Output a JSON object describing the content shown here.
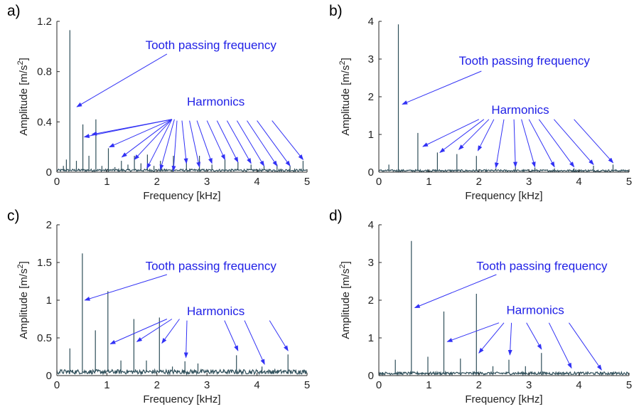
{
  "colors": {
    "spectrum": "#2f4f5a",
    "annotation": "#1f1fe6",
    "axis": "#262626"
  },
  "chart_data": [
    {
      "panel": "a)",
      "type": "line",
      "xlabel": "Frequency [kHz]",
      "ylabel": "Amplitude [m/s2]",
      "xlim": [
        0,
        5
      ],
      "ylim": [
        0,
        1.2
      ],
      "xticks": [
        0,
        1,
        2,
        3,
        4,
        5
      ],
      "yticks": [
        0,
        0.4,
        0.8,
        1.2
      ],
      "xtick_labels": [
        "0",
        "1",
        "2",
        "3",
        "4",
        "5"
      ],
      "ytick_labels": [
        "0",
        "0.4",
        "0.8",
        "1.2"
      ],
      "noise_floor": 0.015,
      "peaks": [
        {
          "x": 0.13,
          "y": 0.05
        },
        {
          "x": 0.19,
          "y": 0.1
        },
        {
          "x": 0.26,
          "y": 1.13
        },
        {
          "x": 0.39,
          "y": 0.09
        },
        {
          "x": 0.52,
          "y": 0.38
        },
        {
          "x": 0.64,
          "y": 0.13
        },
        {
          "x": 0.78,
          "y": 0.42
        },
        {
          "x": 0.9,
          "y": 0.05
        },
        {
          "x": 1.03,
          "y": 0.19
        },
        {
          "x": 1.16,
          "y": 0.04
        },
        {
          "x": 1.29,
          "y": 0.09
        },
        {
          "x": 1.42,
          "y": 0.06
        },
        {
          "x": 1.55,
          "y": 0.13
        },
        {
          "x": 1.68,
          "y": 0.07
        },
        {
          "x": 1.81,
          "y": 0.14
        },
        {
          "x": 1.94,
          "y": 0.05
        },
        {
          "x": 2.07,
          "y": 0.09
        },
        {
          "x": 2.33,
          "y": 0.13
        },
        {
          "x": 2.59,
          "y": 0.09
        },
        {
          "x": 2.85,
          "y": 0.13
        },
        {
          "x": 3.1,
          "y": 0.06
        },
        {
          "x": 3.36,
          "y": 0.1
        },
        {
          "x": 3.62,
          "y": 0.08
        },
        {
          "x": 3.88,
          "y": 0.06
        },
        {
          "x": 4.14,
          "y": 0.05
        },
        {
          "x": 4.4,
          "y": 0.06
        },
        {
          "x": 4.66,
          "y": 0.05
        },
        {
          "x": 4.92,
          "y": 0.09
        }
      ],
      "annotations": [
        {
          "text": "Tooth passing frequency",
          "x": 1.77,
          "y": 0.98,
          "arrows": [
            {
              "x1": 2.2,
              "y1": 0.94,
              "x2": 0.4,
              "y2": 0.52
            }
          ]
        },
        {
          "text": "Harmonics",
          "x": 2.6,
          "y": 0.53,
          "arrows": [
            {
              "x1": 2.3,
              "y1": 0.42,
              "x2": 0.55,
              "y2": 0.28
            },
            {
              "x1": 2.3,
              "y1": 0.42,
              "x2": 0.7,
              "y2": 0.3
            },
            {
              "x1": 2.3,
              "y1": 0.42,
              "x2": 1.05,
              "y2": 0.2
            },
            {
              "x1": 2.3,
              "y1": 0.42,
              "x2": 1.3,
              "y2": 0.12
            },
            {
              "x1": 2.3,
              "y1": 0.42,
              "x2": 1.55,
              "y2": 0.1
            },
            {
              "x1": 2.3,
              "y1": 0.42,
              "x2": 1.8,
              "y2": 0.03
            },
            {
              "x1": 2.35,
              "y1": 0.42,
              "x2": 2.07,
              "y2": 0.02
            },
            {
              "x1": 2.4,
              "y1": 0.41,
              "x2": 2.33,
              "y2": 0.01
            },
            {
              "x1": 2.5,
              "y1": 0.41,
              "x2": 2.59,
              "y2": 0.07
            },
            {
              "x1": 2.65,
              "y1": 0.41,
              "x2": 2.85,
              "y2": 0.04
            },
            {
              "x1": 2.8,
              "y1": 0.41,
              "x2": 3.1,
              "y2": 0.07
            },
            {
              "x1": 3.0,
              "y1": 0.41,
              "x2": 3.36,
              "y2": 0.1
            },
            {
              "x1": 3.2,
              "y1": 0.41,
              "x2": 3.62,
              "y2": 0.08
            },
            {
              "x1": 3.4,
              "y1": 0.41,
              "x2": 3.88,
              "y2": 0.07
            },
            {
              "x1": 3.6,
              "y1": 0.41,
              "x2": 4.14,
              "y2": 0.05
            },
            {
              "x1": 3.8,
              "y1": 0.41,
              "x2": 4.4,
              "y2": 0.05
            },
            {
              "x1": 4.0,
              "y1": 0.41,
              "x2": 4.66,
              "y2": 0.05
            },
            {
              "x1": 4.3,
              "y1": 0.41,
              "x2": 4.92,
              "y2": 0.1
            }
          ]
        }
      ]
    },
    {
      "panel": "b)",
      "type": "line",
      "xlabel": "Frequency [kHz]",
      "ylabel": "Amplitude [m/s2]",
      "xlim": [
        0,
        5
      ],
      "ylim": [
        0,
        4
      ],
      "xticks": [
        0,
        1,
        2,
        3,
        4,
        5
      ],
      "yticks": [
        0,
        1,
        2,
        3,
        4
      ],
      "xtick_labels": [
        "0",
        "1",
        "2",
        "3",
        "4",
        "5"
      ],
      "ytick_labels": [
        "0",
        "1",
        "2",
        "3",
        "4"
      ],
      "noise_floor": 0.04,
      "peaks": [
        {
          "x": 0.2,
          "y": 0.2
        },
        {
          "x": 0.39,
          "y": 3.92
        },
        {
          "x": 0.78,
          "y": 1.04
        },
        {
          "x": 1.17,
          "y": 0.52
        },
        {
          "x": 1.56,
          "y": 0.48
        },
        {
          "x": 1.95,
          "y": 0.43
        },
        {
          "x": 2.34,
          "y": 0.1
        },
        {
          "x": 2.73,
          "y": 0.14
        },
        {
          "x": 3.12,
          "y": 0.12
        },
        {
          "x": 3.51,
          "y": 0.1
        },
        {
          "x": 3.9,
          "y": 0.1
        },
        {
          "x": 4.29,
          "y": 0.17
        },
        {
          "x": 4.68,
          "y": 0.2
        }
      ],
      "annotations": [
        {
          "text": "Tooth passing frequency",
          "x": 1.6,
          "y": 2.85,
          "arrows": [
            {
              "x1": 2.05,
              "y1": 2.68,
              "x2": 0.47,
              "y2": 1.8
            }
          ]
        },
        {
          "text": "Harmonics",
          "x": 2.25,
          "y": 1.55,
          "arrows": [
            {
              "x1": 2.0,
              "y1": 1.4,
              "x2": 0.88,
              "y2": 0.68
            },
            {
              "x1": 2.1,
              "y1": 1.4,
              "x2": 1.22,
              "y2": 0.52
            },
            {
              "x1": 2.2,
              "y1": 1.4,
              "x2": 1.6,
              "y2": 0.6
            },
            {
              "x1": 2.3,
              "y1": 1.4,
              "x2": 1.98,
              "y2": 0.57
            },
            {
              "x1": 2.5,
              "y1": 1.4,
              "x2": 2.34,
              "y2": 0.12
            },
            {
              "x1": 2.7,
              "y1": 1.4,
              "x2": 2.73,
              "y2": 0.14
            },
            {
              "x1": 2.85,
              "y1": 1.4,
              "x2": 3.12,
              "y2": 0.14
            },
            {
              "x1": 3.0,
              "y1": 1.4,
              "x2": 3.51,
              "y2": 0.14
            },
            {
              "x1": 3.2,
              "y1": 1.4,
              "x2": 3.9,
              "y2": 0.14
            },
            {
              "x1": 3.5,
              "y1": 1.4,
              "x2": 4.29,
              "y2": 0.2
            },
            {
              "x1": 3.9,
              "y1": 1.4,
              "x2": 4.68,
              "y2": 0.25
            }
          ]
        }
      ]
    },
    {
      "panel": "c)",
      "type": "line",
      "xlabel": "Frequency [kHz]",
      "ylabel": "Amplitude [m/s2]",
      "xlim": [
        0,
        5
      ],
      "ylim": [
        0,
        2
      ],
      "xticks": [
        0,
        1,
        2,
        3,
        4,
        5
      ],
      "yticks": [
        0,
        0.5,
        1,
        1.5,
        2
      ],
      "xtick_labels": [
        "0",
        "1",
        "2",
        "3",
        "4",
        "5"
      ],
      "ytick_labels": [
        "0",
        "0.5",
        "1",
        "1.5",
        "2"
      ],
      "noise_floor": 0.05,
      "peaks": [
        {
          "x": 0.26,
          "y": 0.36
        },
        {
          "x": 0.51,
          "y": 1.62
        },
        {
          "x": 0.77,
          "y": 0.6
        },
        {
          "x": 1.02,
          "y": 1.12
        },
        {
          "x": 1.28,
          "y": 0.2
        },
        {
          "x": 1.54,
          "y": 0.75
        },
        {
          "x": 1.79,
          "y": 0.2
        },
        {
          "x": 2.05,
          "y": 0.77
        },
        {
          "x": 2.31,
          "y": 0.12
        },
        {
          "x": 2.56,
          "y": 0.19
        },
        {
          "x": 2.82,
          "y": 0.16
        },
        {
          "x": 3.08,
          "y": 0.08
        },
        {
          "x": 3.33,
          "y": 0.08
        },
        {
          "x": 3.59,
          "y": 0.27
        },
        {
          "x": 3.85,
          "y": 0.07
        },
        {
          "x": 4.1,
          "y": 0.12
        },
        {
          "x": 4.36,
          "y": 0.08
        },
        {
          "x": 4.62,
          "y": 0.28
        },
        {
          "x": 4.87,
          "y": 0.07
        }
      ],
      "annotations": [
        {
          "text": "Tooth passing frequency",
          "x": 1.77,
          "y": 1.4,
          "arrows": [
            {
              "x1": 2.2,
              "y1": 1.34,
              "x2": 0.56,
              "y2": 1.0
            }
          ]
        },
        {
          "text": "Harmonics",
          "x": 2.6,
          "y": 0.8,
          "arrows": [
            {
              "x1": 2.2,
              "y1": 0.75,
              "x2": 1.07,
              "y2": 0.42
            },
            {
              "x1": 2.3,
              "y1": 0.75,
              "x2": 1.6,
              "y2": 0.45
            },
            {
              "x1": 2.45,
              "y1": 0.75,
              "x2": 2.1,
              "y2": 0.43
            },
            {
              "x1": 2.6,
              "y1": 0.73,
              "x2": 2.58,
              "y2": 0.24
            },
            {
              "x1": 3.35,
              "y1": 0.73,
              "x2": 3.62,
              "y2": 0.33
            },
            {
              "x1": 3.75,
              "y1": 0.73,
              "x2": 4.15,
              "y2": 0.15
            },
            {
              "x1": 4.25,
              "y1": 0.73,
              "x2": 4.62,
              "y2": 0.33
            }
          ]
        }
      ]
    },
    {
      "panel": "d)",
      "type": "line",
      "xlabel": "Frequency [kHz]",
      "ylabel": "Amplitude [m/s2]",
      "xlim": [
        0,
        5
      ],
      "ylim": [
        0,
        4
      ],
      "xticks": [
        0,
        1,
        2,
        3,
        4,
        5
      ],
      "yticks": [
        0,
        1,
        2,
        3,
        4
      ],
      "xtick_labels": [
        "0",
        "1",
        "2",
        "3",
        "4",
        "5"
      ],
      "ytick_labels": [
        "0",
        "1",
        "2",
        "3",
        "4"
      ],
      "noise_floor": 0.06,
      "peaks": [
        {
          "x": 0.33,
          "y": 0.42
        },
        {
          "x": 0.65,
          "y": 3.57
        },
        {
          "x": 0.98,
          "y": 0.5
        },
        {
          "x": 1.3,
          "y": 1.7
        },
        {
          "x": 1.63,
          "y": 0.45
        },
        {
          "x": 1.95,
          "y": 2.17
        },
        {
          "x": 2.28,
          "y": 0.25
        },
        {
          "x": 2.6,
          "y": 0.42
        },
        {
          "x": 2.93,
          "y": 0.25
        },
        {
          "x": 3.25,
          "y": 0.6
        },
        {
          "x": 3.58,
          "y": 0.08
        },
        {
          "x": 3.9,
          "y": 0.06
        }
      ],
      "annotations": [
        {
          "text": "Tooth passing frequency",
          "x": 1.95,
          "y": 2.8,
          "arrows": [
            {
              "x1": 2.35,
              "y1": 2.68,
              "x2": 0.72,
              "y2": 1.8
            }
          ]
        },
        {
          "text": "Harmonics",
          "x": 2.55,
          "y": 1.63,
          "arrows": [
            {
              "x1": 2.4,
              "y1": 1.4,
              "x2": 1.37,
              "y2": 0.9
            },
            {
              "x1": 2.5,
              "y1": 1.4,
              "x2": 2.0,
              "y2": 0.6
            },
            {
              "x1": 2.65,
              "y1": 1.4,
              "x2": 2.62,
              "y2": 0.55
            },
            {
              "x1": 2.95,
              "y1": 1.4,
              "x2": 3.25,
              "y2": 0.7
            },
            {
              "x1": 3.4,
              "y1": 1.4,
              "x2": 3.85,
              "y2": 0.2
            },
            {
              "x1": 3.8,
              "y1": 1.4,
              "x2": 4.45,
              "y2": 0.15
            }
          ]
        }
      ]
    }
  ]
}
